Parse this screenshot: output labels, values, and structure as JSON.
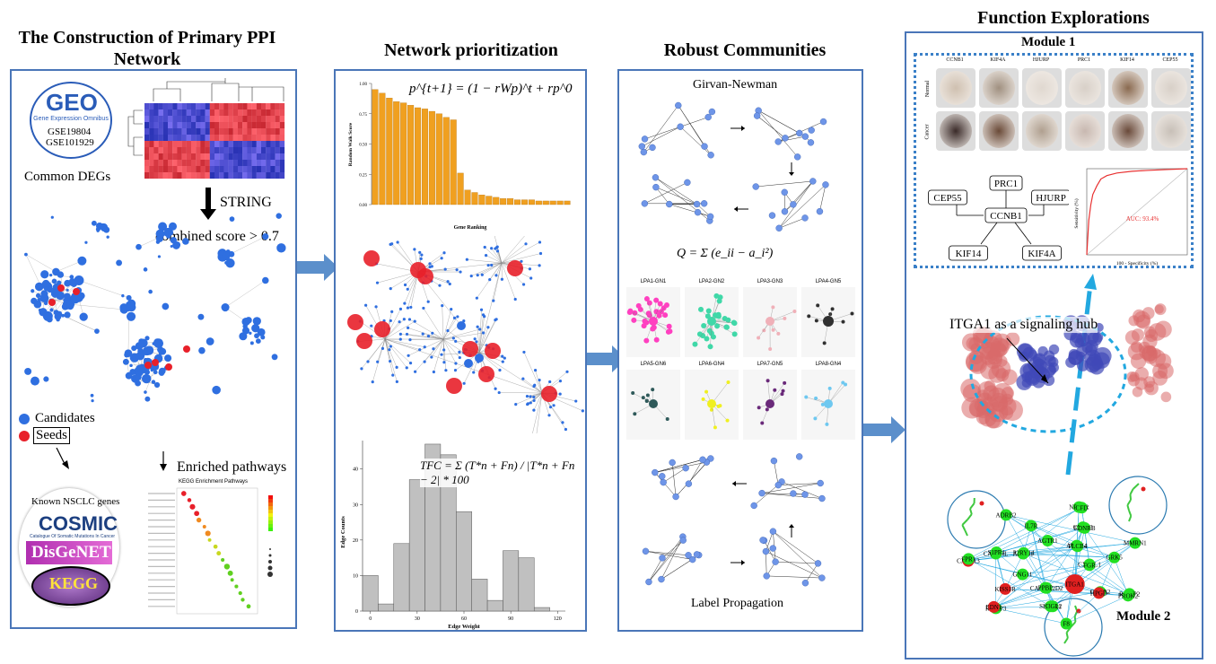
{
  "panels": {
    "p1": {
      "title": "The Construction of Primary PPI Network",
      "geo_label": "GEO",
      "geo_sub": "Gene Expression Omnibus",
      "gse1": "GSE19804",
      "gse2": "GSE101929",
      "common_degs": "Common DEGs",
      "string": "STRING",
      "combined": "combined score > 0.7",
      "legend_candidates": "Candidates",
      "legend_seeds": "Seeds",
      "enriched": "Enriched pathways",
      "known_genes": "Known NSCLC genes",
      "cosmic": "COSMIC",
      "cosmic_sub": "Catalogue Of Somatic Mutations In Cancer",
      "disgenet": "DisGeNET",
      "kegg": "KEGG",
      "kegg_title": "KEGG Enrichment Pathways"
    },
    "p2": {
      "title": "Network prioritization",
      "formula": "p^{t+1} = (1 − rWp)^t + rp^0",
      "ylabel": "Random Walk Score",
      "xlabel": "Gene Ranking",
      "hist_formula": "TFC = Σ (T*n + Fn) / |T*n + Fn − 2| * 100",
      "hist_ylabel": "Edge Counts",
      "hist_xlabel": "Edge Weight"
    },
    "p3": {
      "title": "Robust Communities",
      "gn": "Girvan-Newman",
      "modularity": "Q = Σ (e_ii − a_i²)",
      "lp": "Label Propagation",
      "communities": [
        "LPA1-GN1",
        "LPA2-GN2",
        "LPA3-GN3",
        "LPA4-GN5",
        "LPA5-GN6",
        "LPA6-GN4",
        "LPA7-GN5",
        "LPA8-GN4"
      ]
    },
    "p4": {
      "title": "Function Explorations",
      "module1": "Module 1",
      "module2": "Module 2",
      "ihc_genes": [
        "CCNB1",
        "KIF4A",
        "HJURP",
        "PRC1",
        "KIF14",
        "CEP55"
      ],
      "row_normal": "Normal",
      "row_cancer": "Cancer",
      "hub_center": "CCNB1",
      "hub_nodes": [
        "PRC1",
        "HJURP",
        "KIF4A",
        "KIF14",
        "CEP55"
      ],
      "auc": "AUC: 93.4%",
      "roc_x": "100 - Specificity (%)",
      "roc_y": "Sensitivity (%)",
      "itga1": "ITGA1 as a signaling hub",
      "net_labels": [
        "CX3CL1",
        "S1PR1",
        "CXCL13",
        "CACNA2D2",
        "CALCRL",
        "NPY1R",
        "ADRB1",
        "CXCL3",
        "RAMP2",
        "ADCY4",
        "CXCR2",
        "RAMP3",
        "RXFP1",
        "KISS1R",
        "ADRB2",
        "GNG11",
        "IL7R",
        "MMRN1",
        "AGTR1",
        "GRK5",
        "F8",
        "FGR",
        "SH3GL2",
        "FPR1",
        "PPBP",
        "S1PR1",
        "CFD",
        "P2RY14",
        "EDNRB",
        "PROK2",
        "PLCB4",
        "HPGD",
        "EDN1",
        "ITGA1"
      ]
    }
  },
  "chart_data": [
    {
      "type": "bar",
      "ylabel": "Random Walk Score",
      "xlabel": "Gene Ranking",
      "values": [
        0.95,
        0.92,
        0.88,
        0.85,
        0.84,
        0.82,
        0.8,
        0.79,
        0.77,
        0.75,
        0.72,
        0.7,
        0.26,
        0.12,
        0.1,
        0.08,
        0.07,
        0.06,
        0.05,
        0.05,
        0.04,
        0.04,
        0.04,
        0.03,
        0.03,
        0.03,
        0.03,
        0.03
      ],
      "ylim": [
        0,
        1
      ]
    },
    {
      "type": "bar",
      "ylabel": "Edge Counts",
      "xlabel": "Edge Weight",
      "bins": [
        0,
        10,
        20,
        30,
        40,
        50,
        60,
        70,
        80,
        90,
        100,
        110
      ],
      "values": [
        10,
        2,
        19,
        37,
        47,
        44,
        28,
        9,
        3,
        17,
        15,
        1
      ],
      "xticks": [
        0,
        30,
        60,
        90,
        120
      ],
      "yticks": [
        0,
        10,
        20,
        30,
        40
      ],
      "ylim": [
        0,
        48
      ]
    }
  ],
  "colors": {
    "panel_border": "#4a76b8",
    "arrow": "#5b8fcb",
    "candidate": "#2f6fe0",
    "seed": "#e8202a",
    "bar": "#f0a020",
    "hist": "#c0c0c0"
  }
}
